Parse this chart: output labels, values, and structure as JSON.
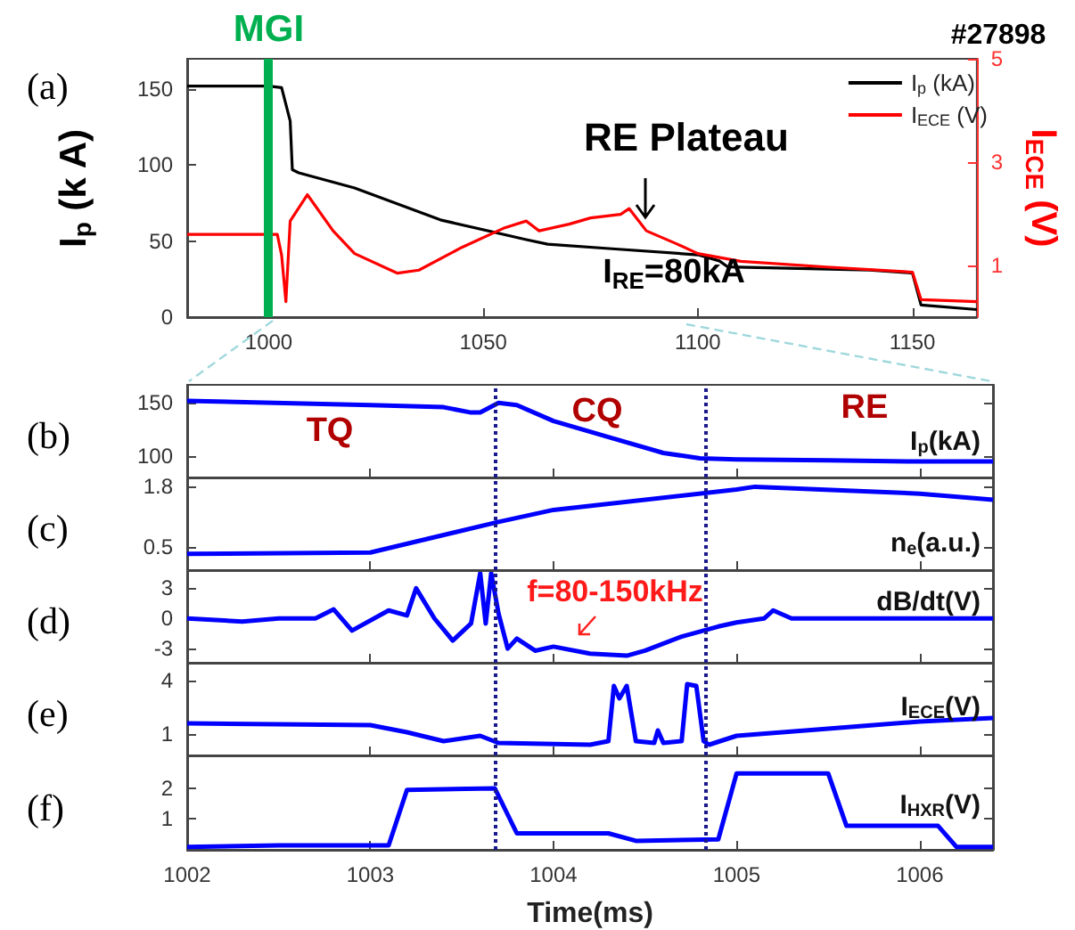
{
  "chart_data": [
    {
      "type": "line",
      "title": "(a)",
      "ylabel": "I$_{p}$ (k A)",
      "y2label": "I$_{ECE}$ (V)",
      "annotations": [
        "#27898",
        "RE Plateau",
        "I$_{RE}$=80kA"
      ],
      "legend": "top right",
      "series": [
        {
          "name": "I$_{p}$ (kA)",
          "color": "#000000",
          "x": [
            981,
            1000,
            1003,
            1004,
            1005,
            1005.5,
            1007,
            1020,
            1040,
            1060,
            1065,
            1080,
            1100,
            1105,
            1107,
            1140,
            1150,
            1152,
            1165
          ],
          "values": [
            152,
            152,
            151,
            140,
            129,
            97,
            95,
            85,
            64,
            51,
            48,
            45,
            41,
            37,
            33,
            31,
            29,
            8,
            5
          ]
        },
        {
          "name": "I$_{ECE}$ (V)",
          "color": "#ff0000",
          "axis": "y2",
          "x": [
            981,
            1000,
            1002,
            1003,
            1004,
            1005,
            1009,
            1015,
            1020,
            1030,
            1035,
            1045,
            1055,
            1060,
            1063,
            1070,
            1075,
            1082,
            1084,
            1088,
            1095,
            1100,
            1110,
            1130,
            1150,
            1152,
            1165
          ],
          "values": [
            1.6,
            1.6,
            1.6,
            1.2,
            0.3,
            1.86,
            2.37,
            1.67,
            1.23,
            0.85,
            0.91,
            1.35,
            1.73,
            1.86,
            1.67,
            1.8,
            1.92,
            1.99,
            2.1,
            1.67,
            1.42,
            1.23,
            1.08,
            0.97,
            0.87,
            0.34,
            0.3
          ]
        }
      ],
      "xlim": [
        981,
        1165
      ],
      "xticks": [
        1000,
        1050,
        1100,
        1150
      ],
      "ylim": [
        0,
        170
      ],
      "yticks": [
        0,
        50,
        100,
        150
      ],
      "y2lim": [
        0,
        5
      ],
      "y2ticks": [
        1,
        3,
        5
      ],
      "ref_lines": [
        {
          "axis": "x",
          "value": 1000,
          "label": "MGI",
          "color": "#00b050",
          "line_style": "solid"
        }
      ]
    },
    {
      "type": "line",
      "title": "(b)",
      "ylabel": "I$_{p}$(kA)",
      "annotations": [
        "TQ",
        "CQ",
        "RE"
      ],
      "series": [
        {
          "color": "#0000ff",
          "x": [
            1002,
            1003,
            1003.4,
            1003.55,
            1003.6,
            1003.7,
            1003.8,
            1004,
            1004.3,
            1004.6,
            1004.8,
            1005,
            1005.5,
            1006,
            1006.4
          ],
          "values": [
            152,
            148,
            146,
            141,
            141,
            150,
            148,
            133,
            118,
            103,
            98,
            97,
            96,
            95,
            95
          ]
        }
      ],
      "xlim": [
        1002,
        1006.4
      ],
      "xticks": [
        1002,
        1003,
        1004,
        1005,
        1006
      ],
      "ylim": [
        80,
        167
      ],
      "yticks": [
        100,
        150
      ],
      "tick_labels": "y",
      "ref_lines": [
        {
          "axis": "x",
          "value": 1003.68,
          "color": "#1a1a8c",
          "line_style": "dotted"
        },
        {
          "axis": "x",
          "value": 1004.83,
          "color": "#1a1a8c",
          "line_style": "dotted"
        }
      ]
    },
    {
      "type": "line",
      "title": "(c)",
      "ylabel": "n$_{e}$(a.u.)",
      "series": [
        {
          "color": "#0000ff",
          "x": [
            1002,
            1003,
            1003.7,
            1004,
            1005,
            1005.1,
            1006,
            1006.4
          ],
          "values": [
            0.35,
            0.38,
            1.04,
            1.3,
            1.74,
            1.8,
            1.65,
            1.52
          ]
        }
      ],
      "xlim": [
        1002,
        1006.4
      ],
      "xticks": [
        1002,
        1003,
        1004,
        1005,
        1006
      ],
      "ylim": [
        0,
        2
      ],
      "yticks": [
        0.5,
        1.8
      ],
      "tick_labels": "y",
      "ref_lines": [
        {
          "axis": "x",
          "value": 1003.68,
          "color": "#1a1a8c",
          "line_style": "dotted"
        },
        {
          "axis": "x",
          "value": 1004.83,
          "color": "#1a1a8c",
          "line_style": "dotted"
        }
      ]
    },
    {
      "type": "line",
      "title": "(d)",
      "ylabel": "dB/dt(V)",
      "annotations": [
        "f=80-150kHz"
      ],
      "series": [
        {
          "color": "#0000ff",
          "x": [
            1002,
            1002.3,
            1002.5,
            1002.7,
            1002.8,
            1002.9,
            1003.1,
            1003.2,
            1003.25,
            1003.35,
            1003.45,
            1003.55,
            1003.6,
            1003.63,
            1003.66,
            1003.7,
            1003.75,
            1003.8,
            1003.9,
            1004,
            1004.2,
            1004.4,
            1004.5,
            1004.7,
            1004.9,
            1005,
            1005.15,
            1005.2,
            1005.3,
            1006.4
          ],
          "values": [
            0,
            -0.3,
            0,
            0,
            0.9,
            -1.2,
            0.8,
            0.3,
            3,
            0,
            -2.2,
            -0.5,
            4.5,
            -0.5,
            4.5,
            0.5,
            -3,
            -2,
            -3.2,
            -2.8,
            -3.5,
            -3.7,
            -3.2,
            -1.8,
            -0.8,
            -0.4,
            0,
            0.8,
            0,
            0
          ]
        }
      ],
      "xlim": [
        1002,
        1006.4
      ],
      "xticks": [
        1002,
        1003,
        1004,
        1005,
        1006
      ],
      "ylim": [
        -4.4,
        4.8
      ],
      "yticks": [
        -3,
        0,
        3
      ],
      "tick_labels": "y",
      "ref_lines": [
        {
          "axis": "x",
          "value": 1003.68,
          "color": "#1a1a8c",
          "line_style": "dotted"
        },
        {
          "axis": "x",
          "value": 1004.83,
          "color": "#1a1a8c",
          "line_style": "dotted"
        }
      ]
    },
    {
      "type": "line",
      "title": "(e)",
      "ylabel": "I$_{ECE}$(V)",
      "series": [
        {
          "color": "#0000ff",
          "x": [
            1002,
            1003,
            1003.2,
            1003.4,
            1003.6,
            1003.7,
            1004.2,
            1004.3,
            1004.33,
            1004.36,
            1004.4,
            1004.45,
            1004.55,
            1004.57,
            1004.6,
            1004.7,
            1004.73,
            1004.78,
            1004.82,
            1004.85,
            1005,
            1005.5,
            1006,
            1006.4
          ],
          "values": [
            1.6,
            1.5,
            1.1,
            0.6,
            0.9,
            0.5,
            0.4,
            0.6,
            3.7,
            3,
            3.7,
            0.6,
            0.5,
            1.2,
            0.5,
            0.6,
            3.8,
            3.7,
            0.6,
            0.4,
            0.9,
            1.3,
            1.7,
            1.9
          ]
        }
      ],
      "xlim": [
        1002,
        1006.4
      ],
      "xticks": [
        1002,
        1003,
        1004,
        1005,
        1006
      ],
      "ylim": [
        -0.2,
        5
      ],
      "yticks": [
        1,
        4
      ],
      "tick_labels": "y",
      "ref_lines": [
        {
          "axis": "x",
          "value": 1003.68,
          "color": "#1a1a8c",
          "line_style": "dotted"
        },
        {
          "axis": "x",
          "value": 1004.83,
          "color": "#1a1a8c",
          "line_style": "dotted"
        }
      ]
    },
    {
      "type": "line",
      "title": "(f)",
      "ylabel": "I$_{HXR}$(V)",
      "xlabel": "Time(ms)",
      "series": [
        {
          "color": "#0000ff",
          "x": [
            1002,
            1002.5,
            1003.1,
            1003.2,
            1003.68,
            1003.8,
            1004.3,
            1004.45,
            1004.9,
            1005,
            1005.5,
            1005.6,
            1006.1,
            1006.2,
            1006.4
          ],
          "values": [
            0.05,
            0.1,
            0.1,
            1.95,
            2,
            0.5,
            0.5,
            0.25,
            0.3,
            2.5,
            2.5,
            0.75,
            0.75,
            0.05,
            0.05
          ]
        }
      ],
      "xlim": [
        1002,
        1006.4
      ],
      "xticks": [
        1002,
        1003,
        1004,
        1005,
        1006
      ],
      "ylim": [
        -0.05,
        3.1
      ],
      "yticks": [
        1,
        2
      ],
      "ref_lines": [
        {
          "axis": "x",
          "value": 1003.68,
          "color": "#1a1a8c",
          "line_style": "dotted"
        },
        {
          "axis": "x",
          "value": 1004.83,
          "color": "#1a1a8c",
          "line_style": "dotted"
        }
      ]
    }
  ]
}
